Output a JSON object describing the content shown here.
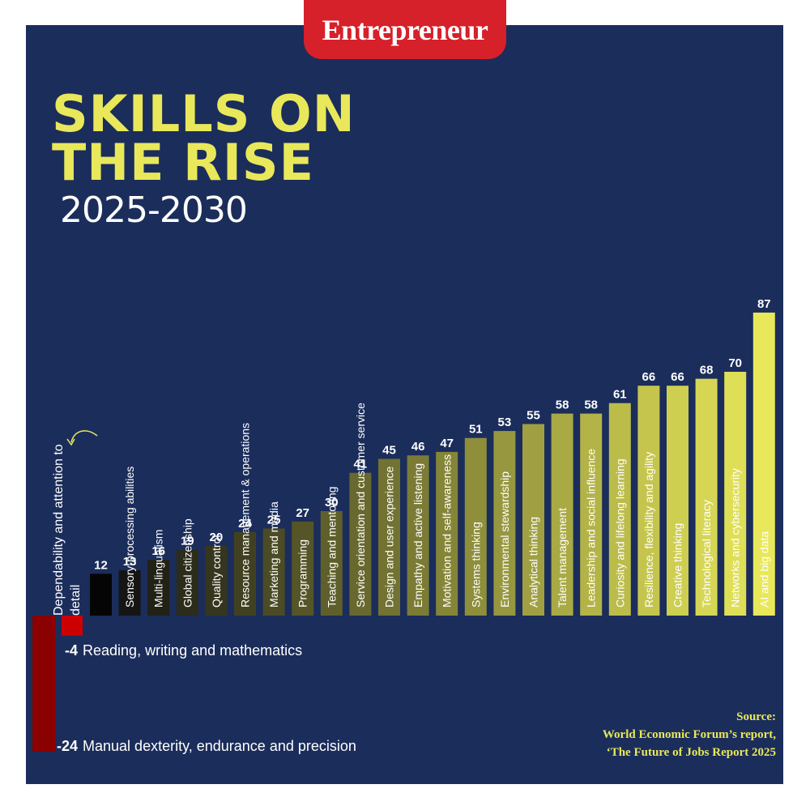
{
  "brand": "Entrepreneur",
  "header": {
    "title_line1": "SKILLS ON",
    "title_line2": "THE RISE",
    "subtitle": "2025-2030"
  },
  "source": {
    "heading": "Source:",
    "line1": "World Economic Forum’s report,",
    "line2": "‘The Future of Jobs Report 2025"
  },
  "colors": {
    "background": "#1b2d5b",
    "accent": "#e8e85a",
    "brand_red": "#d6202a",
    "negative_dark": "#8b0000",
    "negative_bright": "#cc0000"
  },
  "chart_data": {
    "type": "bar",
    "title": "SKILLS ON THE RISE",
    "subtitle": "2025-2030",
    "categories": [
      "Dependability and attention to detail",
      "Sensory-processing abilities",
      "Multi-lingualism",
      "Global citizenship",
      "Quality control",
      "Resource management & operations",
      "Marketing and media",
      "Programming",
      "Teaching and mentoring",
      "Service orientation and customer service",
      "Design and user experience",
      "Empathy and active listening",
      "Motivation and self-awareness",
      "Systems thinking",
      "Environmental stewardship",
      "Analytical thinking",
      "Talent management",
      "Leadership and social influence",
      "Curiosity and lifelong learning",
      "Resilience, flexibility and agility",
      "Creative thinking",
      "Technological literacy",
      "Networks and cybersecurity",
      "AI and big data"
    ],
    "values": [
      12,
      13,
      16,
      19,
      20,
      24,
      25,
      27,
      30,
      41,
      45,
      46,
      47,
      51,
      53,
      55,
      58,
      58,
      61,
      66,
      66,
      68,
      70,
      87
    ],
    "value_labels": [
      "12",
      "13",
      "16",
      "19",
      "20",
      "24",
      "25",
      "27",
      "30",
      "41",
      "45",
      "46",
      "47",
      "51",
      "53",
      "55",
      "58",
      "58",
      "61",
      "66",
      "66",
      "68",
      "70",
      "87"
    ],
    "negatives": [
      {
        "label": "Reading, writing and mathematics",
        "value": -4,
        "value_label": "-4"
      },
      {
        "label": "Manual dexterity, endurance and precision",
        "value": -24,
        "value_label": "-24"
      }
    ],
    "ylim": [
      -24,
      87
    ],
    "grid": false,
    "legend": "none"
  }
}
